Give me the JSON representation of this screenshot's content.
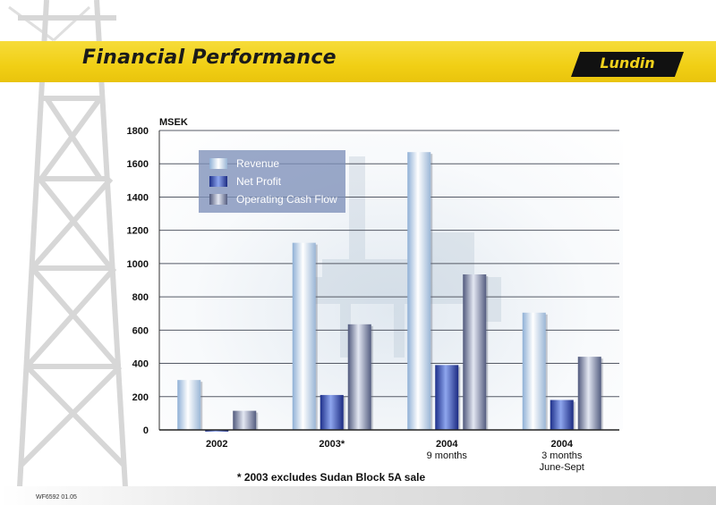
{
  "header": {
    "title": "Financial Performance",
    "logo_text": "Lundin"
  },
  "footnote": "* 2003 excludes Sudan Block 5A sale",
  "reference_code": "WF6592 01.05",
  "colors": {
    "header_band": "#f1cf15",
    "revenue": "#c7dbee",
    "net_profit": "#2f44a8",
    "operating_cash_flow": "#7b84a4",
    "legend_background": "#7e8fb8"
  },
  "chart_data": {
    "type": "bar",
    "title": "",
    "ylabel": "MSEK",
    "xlabel": "",
    "ylim": [
      0,
      1800
    ],
    "yticks": [
      0,
      200,
      400,
      600,
      800,
      1000,
      1200,
      1400,
      1600,
      1800
    ],
    "grid": true,
    "legend_position": "top-left",
    "categories": [
      [
        "2002"
      ],
      [
        "2003*"
      ],
      [
        "2004",
        "9 months"
      ],
      [
        "2004",
        "3 months",
        "June-Sept"
      ]
    ],
    "series": [
      {
        "name": "Revenue",
        "values": [
          300,
          1125,
          1670,
          705
        ],
        "color": "#c7dbee"
      },
      {
        "name": "Net Profit",
        "values": [
          -10,
          210,
          390,
          180
        ],
        "color": "#2f44a8"
      },
      {
        "name": "Operating Cash Flow",
        "values": [
          115,
          635,
          935,
          440
        ],
        "color": "#7b84a4"
      }
    ]
  }
}
